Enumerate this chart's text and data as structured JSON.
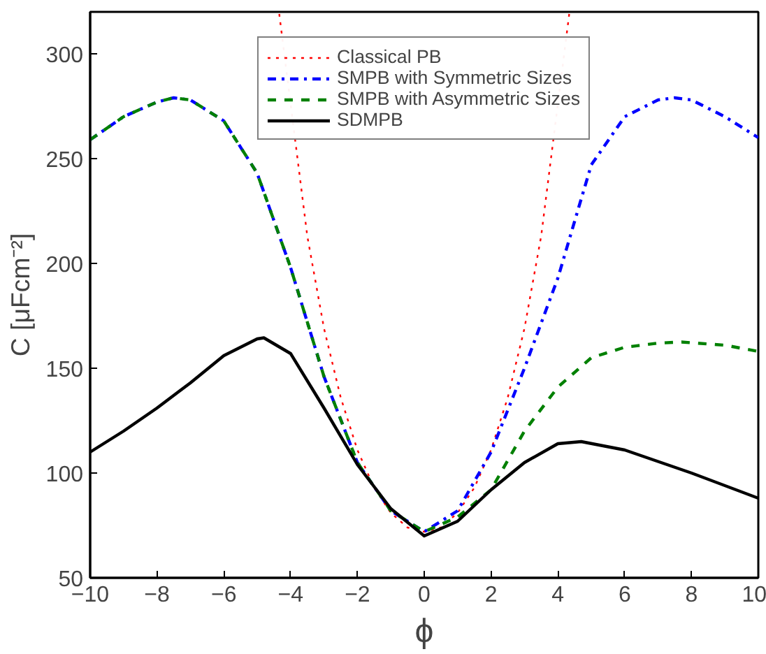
{
  "chart_data": {
    "type": "line",
    "xlabel": "ϕ",
    "ylabel": "C [μFcm⁻²]",
    "xlim": [
      -10,
      10
    ],
    "ylim": [
      50,
      320
    ],
    "xticks": [
      -10,
      -8,
      -6,
      -4,
      -2,
      0,
      2,
      4,
      6,
      8,
      10
    ],
    "yticks": [
      50,
      100,
      150,
      200,
      250,
      300
    ],
    "grid": false,
    "legend": "top",
    "marker": "none",
    "series": [
      {
        "name": "Classical PB",
        "color": "#ff0000",
        "line_style": "dotted",
        "x": [
          -4.34,
          -3.5,
          -3,
          -2.5,
          -2,
          -1.5,
          -1,
          -0.5,
          0,
          0.5,
          1,
          1.5,
          2,
          2.5,
          3,
          3.5,
          4.34
        ],
        "values": [
          319,
          213,
          169,
          136,
          111,
          93,
          81,
          74,
          72,
          74,
          81,
          93,
          111,
          136,
          169,
          213,
          319
        ]
      },
      {
        "name": "SMPB with Symmetric Sizes",
        "color": "#0000ff",
        "line_style": "dashdot",
        "x": [
          -10,
          -9,
          -8,
          -7.5,
          -7,
          -6,
          -5,
          -4,
          -3,
          -2,
          -1,
          0,
          1,
          2,
          3,
          4,
          5,
          6,
          7,
          7.5,
          8,
          9,
          10
        ],
        "values": [
          259,
          270,
          277,
          279,
          278,
          268,
          243,
          198,
          146,
          105,
          82,
          72,
          82,
          110,
          150,
          193,
          247,
          270,
          278,
          279,
          278,
          270,
          260
        ]
      },
      {
        "name": "SMPB with Asymmetric Sizes",
        "color": "#008000",
        "line_style": "dashed",
        "x": [
          -10,
          -9,
          -8,
          -7.5,
          -7,
          -6,
          -5,
          -4,
          -3,
          -2,
          -1,
          0,
          1,
          2,
          3,
          4,
          5,
          6,
          7,
          7.7,
          9,
          10
        ],
        "values": [
          259,
          270,
          277,
          279,
          278,
          268,
          243,
          198,
          146,
          105,
          82,
          72,
          79,
          92,
          120,
          141,
          155,
          160,
          162,
          162.5,
          161,
          158
        ]
      },
      {
        "name": "SDMPB",
        "color": "#000000",
        "line_style": "solid",
        "x": [
          -10,
          -9,
          -8,
          -7,
          -6,
          -5,
          -4.8,
          -4,
          -3,
          -2,
          -1,
          0,
          1,
          2,
          3,
          4,
          4.7,
          6,
          8,
          10
        ],
        "values": [
          110,
          120,
          131,
          143,
          156,
          164,
          164.5,
          157,
          131,
          104,
          83,
          70,
          77,
          92,
          105,
          114,
          115,
          111,
          100,
          88
        ]
      }
    ]
  }
}
